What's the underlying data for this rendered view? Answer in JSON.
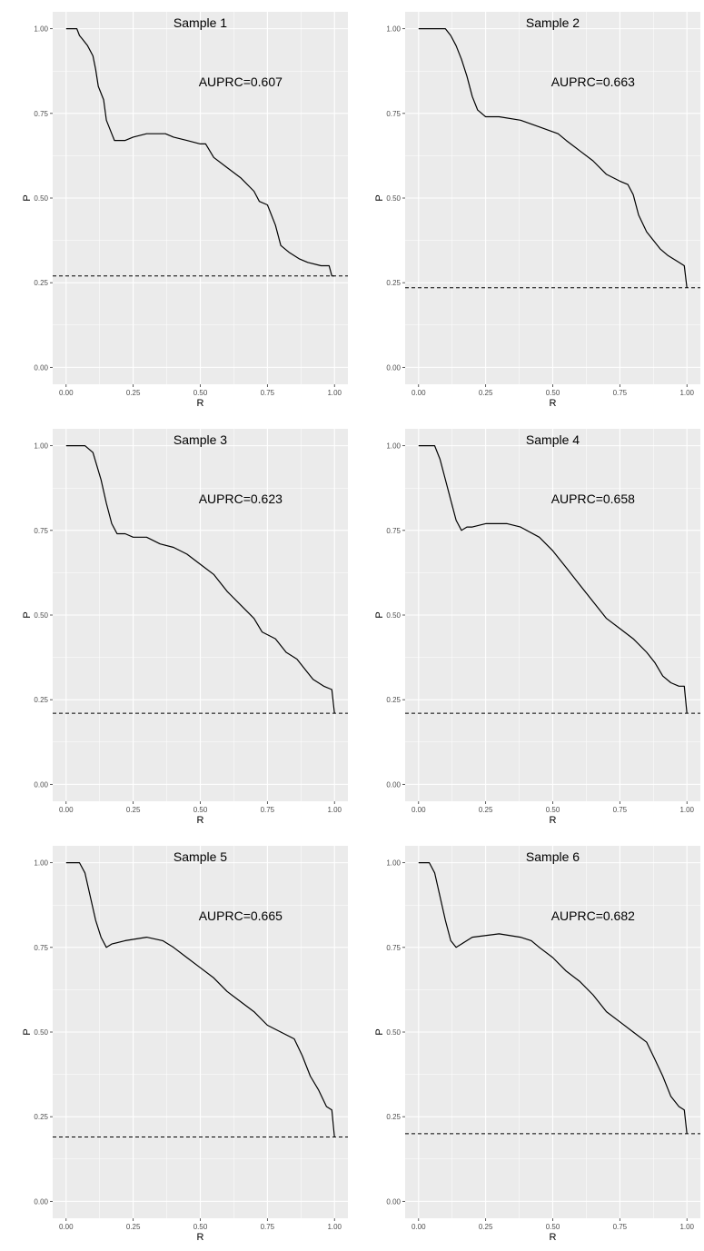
{
  "chart_data": [
    {
      "type": "line",
      "title": "Sample 1",
      "annotation": "AUPRC=0.607",
      "xlabel": "R",
      "ylabel": "P",
      "xlim": [
        0,
        1
      ],
      "ylim": [
        0,
        1
      ],
      "xticks": [
        "0.00",
        "0.25",
        "0.50",
        "0.75",
        "1.00"
      ],
      "yticks": [
        "0.00",
        "0.25",
        "0.50",
        "0.75",
        "1.00"
      ],
      "baseline": 0.27,
      "grid": true,
      "x": [
        0.0,
        0.04,
        0.05,
        0.06,
        0.08,
        0.1,
        0.11,
        0.12,
        0.14,
        0.15,
        0.17,
        0.18,
        0.19,
        0.22,
        0.25,
        0.3,
        0.37,
        0.4,
        0.45,
        0.5,
        0.52,
        0.55,
        0.6,
        0.65,
        0.7,
        0.72,
        0.75,
        0.78,
        0.8,
        0.83,
        0.87,
        0.9,
        0.95,
        0.98,
        0.99,
        1.0
      ],
      "y": [
        1.0,
        1.0,
        0.98,
        0.97,
        0.95,
        0.92,
        0.88,
        0.83,
        0.79,
        0.73,
        0.69,
        0.67,
        0.67,
        0.67,
        0.68,
        0.69,
        0.69,
        0.68,
        0.67,
        0.66,
        0.66,
        0.62,
        0.59,
        0.56,
        0.52,
        0.49,
        0.48,
        0.42,
        0.36,
        0.34,
        0.32,
        0.31,
        0.3,
        0.3,
        0.27,
        0.27
      ]
    },
    {
      "type": "line",
      "title": "Sample 2",
      "annotation": "AUPRC=0.663",
      "xlabel": "R",
      "ylabel": "P",
      "xlim": [
        0,
        1
      ],
      "ylim": [
        0,
        1
      ],
      "xticks": [
        "0.00",
        "0.25",
        "0.50",
        "0.75",
        "1.00"
      ],
      "yticks": [
        "0.00",
        "0.25",
        "0.50",
        "0.75",
        "1.00"
      ],
      "baseline": 0.235,
      "grid": true,
      "x": [
        0.0,
        0.1,
        0.12,
        0.14,
        0.16,
        0.18,
        0.2,
        0.22,
        0.25,
        0.3,
        0.38,
        0.45,
        0.52,
        0.55,
        0.6,
        0.65,
        0.7,
        0.75,
        0.78,
        0.8,
        0.82,
        0.85,
        0.9,
        0.93,
        0.97,
        0.99,
        1.0
      ],
      "y": [
        1.0,
        1.0,
        0.98,
        0.95,
        0.91,
        0.86,
        0.8,
        0.76,
        0.74,
        0.74,
        0.73,
        0.71,
        0.69,
        0.67,
        0.64,
        0.61,
        0.57,
        0.55,
        0.54,
        0.51,
        0.45,
        0.4,
        0.35,
        0.33,
        0.31,
        0.3,
        0.235
      ]
    },
    {
      "type": "line",
      "title": "Sample 3",
      "annotation": "AUPRC=0.623",
      "xlabel": "R",
      "ylabel": "P",
      "xlim": [
        0,
        1
      ],
      "ylim": [
        0,
        1
      ],
      "xticks": [
        "0.00",
        "0.25",
        "0.50",
        "0.75",
        "1.00"
      ],
      "yticks": [
        "0.00",
        "0.25",
        "0.50",
        "0.75",
        "1.00"
      ],
      "baseline": 0.21,
      "grid": true,
      "x": [
        0.0,
        0.07,
        0.1,
        0.13,
        0.15,
        0.17,
        0.19,
        0.22,
        0.25,
        0.3,
        0.35,
        0.4,
        0.45,
        0.5,
        0.55,
        0.6,
        0.65,
        0.7,
        0.73,
        0.78,
        0.82,
        0.86,
        0.89,
        0.92,
        0.96,
        0.99,
        1.0
      ],
      "y": [
        1.0,
        1.0,
        0.98,
        0.9,
        0.83,
        0.77,
        0.74,
        0.74,
        0.73,
        0.73,
        0.71,
        0.7,
        0.68,
        0.65,
        0.62,
        0.57,
        0.53,
        0.49,
        0.45,
        0.43,
        0.39,
        0.37,
        0.34,
        0.31,
        0.29,
        0.28,
        0.21
      ]
    },
    {
      "type": "line",
      "title": "Sample 4",
      "annotation": "AUPRC=0.658",
      "xlabel": "R",
      "ylabel": "P",
      "xlim": [
        0,
        1
      ],
      "ylim": [
        0,
        1
      ],
      "xticks": [
        "0.00",
        "0.25",
        "0.50",
        "0.75",
        "1.00"
      ],
      "yticks": [
        "0.00",
        "0.25",
        "0.50",
        "0.75",
        "1.00"
      ],
      "baseline": 0.21,
      "grid": true,
      "x": [
        0.0,
        0.06,
        0.08,
        0.1,
        0.12,
        0.14,
        0.16,
        0.18,
        0.2,
        0.25,
        0.33,
        0.38,
        0.45,
        0.5,
        0.55,
        0.6,
        0.65,
        0.7,
        0.75,
        0.8,
        0.85,
        0.88,
        0.91,
        0.94,
        0.97,
        0.99,
        1.0
      ],
      "y": [
        1.0,
        1.0,
        0.96,
        0.9,
        0.84,
        0.78,
        0.75,
        0.76,
        0.76,
        0.77,
        0.77,
        0.76,
        0.73,
        0.69,
        0.64,
        0.59,
        0.54,
        0.49,
        0.46,
        0.43,
        0.39,
        0.36,
        0.32,
        0.3,
        0.29,
        0.29,
        0.21
      ]
    },
    {
      "type": "line",
      "title": "Sample 5",
      "annotation": "AUPRC=0.665",
      "xlabel": "R",
      "ylabel": "P",
      "xlim": [
        0,
        1
      ],
      "ylim": [
        0,
        1
      ],
      "xticks": [
        "0.00",
        "0.25",
        "0.50",
        "0.75",
        "1.00"
      ],
      "yticks": [
        "0.00",
        "0.25",
        "0.50",
        "0.75",
        "1.00"
      ],
      "baseline": 0.19,
      "grid": true,
      "x": [
        0.0,
        0.05,
        0.07,
        0.09,
        0.11,
        0.13,
        0.15,
        0.17,
        0.22,
        0.3,
        0.36,
        0.4,
        0.45,
        0.5,
        0.55,
        0.6,
        0.65,
        0.7,
        0.75,
        0.8,
        0.85,
        0.88,
        0.91,
        0.94,
        0.97,
        0.99,
        1.0
      ],
      "y": [
        1.0,
        1.0,
        0.97,
        0.9,
        0.83,
        0.78,
        0.75,
        0.76,
        0.77,
        0.78,
        0.77,
        0.75,
        0.72,
        0.69,
        0.66,
        0.62,
        0.59,
        0.56,
        0.52,
        0.5,
        0.48,
        0.43,
        0.37,
        0.33,
        0.28,
        0.27,
        0.19
      ]
    },
    {
      "type": "line",
      "title": "Sample 6",
      "annotation": "AUPRC=0.682",
      "xlabel": "R",
      "ylabel": "P",
      "xlim": [
        0,
        1
      ],
      "ylim": [
        0,
        1
      ],
      "xticks": [
        "0.00",
        "0.25",
        "0.50",
        "0.75",
        "1.00"
      ],
      "yticks": [
        "0.00",
        "0.25",
        "0.50",
        "0.75",
        "1.00"
      ],
      "baseline": 0.2,
      "grid": true,
      "x": [
        0.0,
        0.04,
        0.06,
        0.08,
        0.1,
        0.12,
        0.14,
        0.16,
        0.2,
        0.3,
        0.38,
        0.42,
        0.45,
        0.5,
        0.55,
        0.6,
        0.65,
        0.7,
        0.75,
        0.8,
        0.85,
        0.88,
        0.91,
        0.94,
        0.97,
        0.99,
        1.0
      ],
      "y": [
        1.0,
        1.0,
        0.97,
        0.9,
        0.83,
        0.77,
        0.75,
        0.76,
        0.78,
        0.79,
        0.78,
        0.77,
        0.75,
        0.72,
        0.68,
        0.65,
        0.61,
        0.56,
        0.53,
        0.5,
        0.47,
        0.42,
        0.37,
        0.31,
        0.28,
        0.27,
        0.2
      ]
    }
  ],
  "colors": {
    "panel_background": "#ebebeb",
    "grid_major": "#ffffff",
    "line": "#000000",
    "tick_text": "#4d4d4d"
  }
}
